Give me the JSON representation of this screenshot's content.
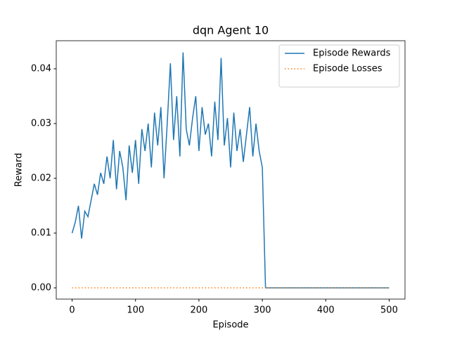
{
  "chart_data": {
    "type": "line",
    "title": "dqn Agent 10",
    "xlabel": "Episode",
    "ylabel": "Reward",
    "x": [
      0,
      5,
      10,
      15,
      20,
      25,
      30,
      35,
      40,
      45,
      50,
      55,
      60,
      65,
      70,
      75,
      80,
      85,
      90,
      95,
      100,
      105,
      110,
      115,
      120,
      125,
      130,
      135,
      140,
      145,
      150,
      155,
      160,
      165,
      170,
      175,
      180,
      185,
      190,
      195,
      200,
      205,
      210,
      215,
      220,
      225,
      230,
      235,
      240,
      245,
      250,
      255,
      260,
      265,
      270,
      275,
      280,
      285,
      290,
      295,
      300,
      305,
      310,
      315,
      320,
      325,
      330,
      335,
      340,
      345,
      350,
      355,
      360,
      365,
      370,
      375,
      380,
      385,
      390,
      395,
      400,
      405,
      410,
      415,
      420,
      425,
      430,
      435,
      440,
      445,
      450,
      455,
      460,
      465,
      470,
      475,
      480,
      485,
      490,
      495,
      500
    ],
    "series": [
      {
        "name": "Episode Rewards",
        "color": "#1f77b4",
        "style": "solid",
        "values": [
          0.01,
          0.012,
          0.015,
          0.009,
          0.014,
          0.013,
          0.016,
          0.019,
          0.017,
          0.021,
          0.019,
          0.024,
          0.02,
          0.027,
          0.018,
          0.025,
          0.022,
          0.016,
          0.026,
          0.021,
          0.027,
          0.019,
          0.029,
          0.025,
          0.03,
          0.022,
          0.032,
          0.026,
          0.033,
          0.02,
          0.03,
          0.041,
          0.027,
          0.035,
          0.024,
          0.043,
          0.029,
          0.026,
          0.031,
          0.035,
          0.025,
          0.033,
          0.028,
          0.03,
          0.024,
          0.034,
          0.027,
          0.042,
          0.026,
          0.031,
          0.022,
          0.032,
          0.025,
          0.029,
          0.023,
          0.028,
          0.033,
          0.024,
          0.03,
          0.025,
          0.022,
          0,
          0,
          0,
          0,
          0,
          0,
          0,
          0,
          0,
          0,
          0,
          0,
          0,
          0,
          0,
          0,
          0,
          0,
          0,
          0,
          0,
          0,
          0,
          0,
          0,
          0,
          0,
          0,
          0,
          0,
          0,
          0,
          0,
          0,
          0,
          0,
          0,
          0,
          0,
          0
        ]
      },
      {
        "name": "Episode Losses",
        "color": "#ff7f0e",
        "style": "dotted",
        "values": [
          0,
          0,
          0,
          0,
          0,
          0,
          0,
          0,
          0,
          0,
          0,
          0,
          0,
          0,
          0,
          0,
          0,
          0,
          0,
          0,
          0,
          0,
          0,
          0,
          0,
          0,
          0,
          0,
          0,
          0,
          0,
          0,
          0,
          0,
          0,
          0,
          0,
          0,
          0,
          0,
          0,
          0,
          0,
          0,
          0,
          0,
          0,
          0,
          0,
          0,
          0,
          0,
          0,
          0,
          0,
          0,
          0,
          0,
          0,
          0,
          0,
          0,
          0,
          0,
          0,
          0,
          0,
          0,
          0,
          0,
          0,
          0,
          0,
          0,
          0,
          0,
          0,
          0,
          0,
          0,
          0,
          0,
          0,
          0,
          0,
          0,
          0,
          0,
          0,
          0,
          0,
          0,
          0,
          0,
          0,
          0,
          0,
          0,
          0,
          0,
          0
        ]
      }
    ],
    "xlim": [
      -25,
      525
    ],
    "xticks": [
      0,
      100,
      200,
      300,
      400,
      500
    ],
    "ylim": [
      -0.00205,
      0.04513
    ],
    "yticks": [
      {
        "value": 0,
        "label": "0.00"
      },
      0.01,
      0.02,
      0.03,
      0.04
    ],
    "legend": "upper right",
    "grid": false
  }
}
